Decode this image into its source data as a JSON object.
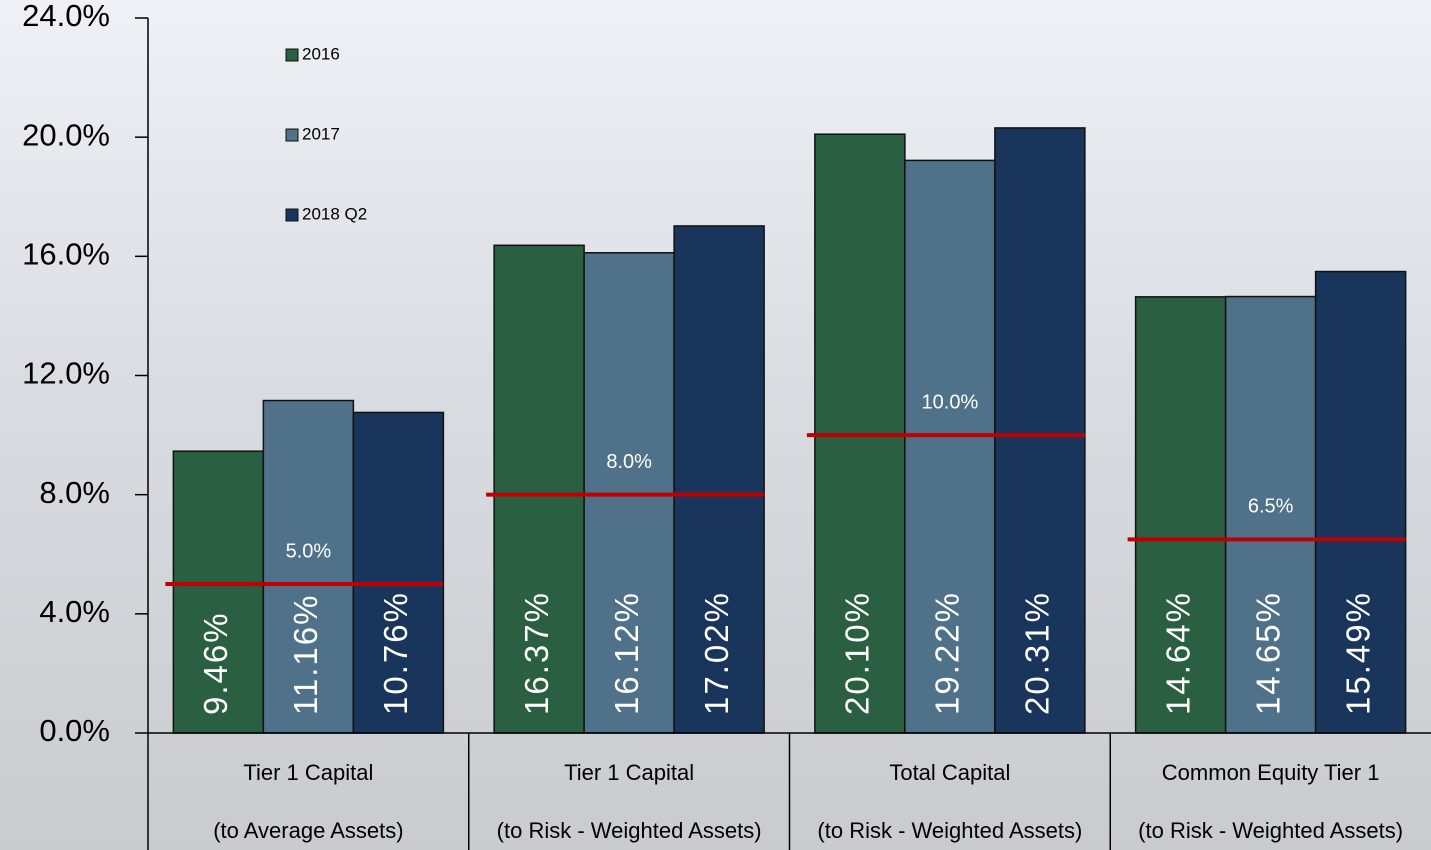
{
  "chart_data": {
    "type": "bar",
    "categories": [
      [
        "Tier 1 Capital",
        "(to Average Assets)"
      ],
      [
        "Tier 1 Capital",
        "(to Risk - Weighted Assets)"
      ],
      [
        "Total Capital",
        "(to Risk - Weighted Assets)"
      ],
      [
        "Common Equity Tier 1",
        "(to Risk - Weighted Assets)"
      ]
    ],
    "series": [
      {
        "name": "2016",
        "color": "#2a6041",
        "values": [
          9.46,
          16.37,
          20.1,
          14.64
        ],
        "value_labels": [
          "9.46%",
          "16.37%",
          "20.10%",
          "14.64%"
        ]
      },
      {
        "name": "2017",
        "color": "#4f7189",
        "values": [
          11.16,
          16.12,
          19.22,
          14.65
        ],
        "value_labels": [
          "11.16%",
          "16.12%",
          "19.22%",
          "14.65%"
        ]
      },
      {
        "name": "2018 Q2",
        "color": "#1a355b",
        "values": [
          10.76,
          17.02,
          20.31,
          15.49
        ],
        "value_labels": [
          "10.76%",
          "17.02%",
          "20.31%",
          "15.49%"
        ]
      }
    ],
    "thresholds": [
      {
        "value": 5.0,
        "label": "5.0%"
      },
      {
        "value": 8.0,
        "label": "8.0%"
      },
      {
        "value": 10.0,
        "label": "10.0%"
      },
      {
        "value": 6.5,
        "label": "6.5%"
      }
    ],
    "threshold_color": "#c00000",
    "ylim": [
      0,
      24
    ],
    "yticks": [
      {
        "value": 0,
        "label": "0.0%"
      },
      {
        "value": 4,
        "label": "4.0%"
      },
      {
        "value": 8,
        "label": "8.0%"
      },
      {
        "value": 12,
        "label": "12.0%"
      },
      {
        "value": 16,
        "label": "16.0%"
      },
      {
        "value": 20,
        "label": "20.0%"
      },
      {
        "value": 24,
        "label": "24.0%"
      }
    ]
  }
}
